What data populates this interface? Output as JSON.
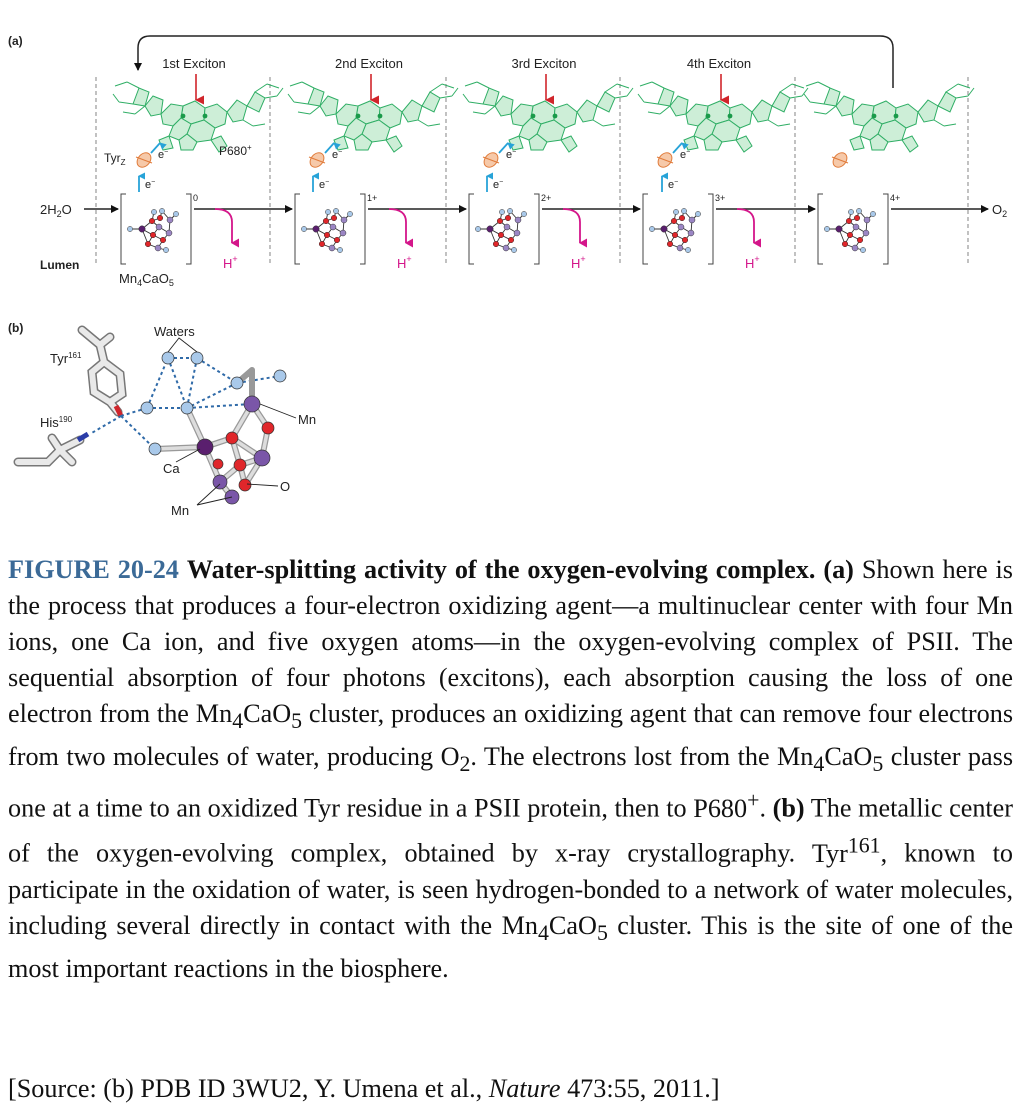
{
  "panel_a": {
    "label": "(a)",
    "excitons": [
      "1st Exciton",
      "2nd Exciton",
      "3rd Exciton",
      "4th Exciton"
    ],
    "tyr_label": "Tyr",
    "tyr_sub": "Z",
    "p680_label": "P680",
    "p680_sup": "+",
    "electron": "e",
    "electron_sup": "−",
    "water": "2H",
    "water_sub": "2",
    "water_end": "O",
    "oxygen": "O",
    "oxygen_sub": "2",
    "lumen": "Lumen",
    "cluster": [
      "Mn",
      "4",
      "CaO",
      "5"
    ],
    "states": [
      "0",
      "1+",
      "2+",
      "3+",
      "4+"
    ],
    "proton": "H",
    "proton_sup": "+"
  },
  "panel_b": {
    "label": "(b)",
    "waters": "Waters",
    "tyr": "Tyr",
    "tyr_sup": "161",
    "his": "His",
    "his_sup": "190",
    "mn": "Mn",
    "ca": "Ca",
    "o": "O"
  },
  "caption": {
    "fig_num": "FIGURE 20-24",
    "fig_title": "Water-splitting activity of the oxygen-evolving complex.",
    "a_marker": "(a)",
    "t1": "Shown here is the process that produces a four-electron oxidizing agent—a multinuclear center with four Mn ions, one Ca ion, and five oxygen atoms—in the oxygen-evolving complex of PSII. The sequential absorption of four photons (excitons), each absorption causing the loss of one electron from the",
    "mn": "Mn",
    "n4": "4",
    "cao": "CaO",
    "n5": "5",
    "t2": "cluster, produces an oxidizing agent that can remove four electrons from two molecules of water, producing",
    "o2_o": "O",
    "o2_2": "2",
    "t3": ". The electrons lost from the",
    "t4": "cluster pass one at a time to an oxidized Tyr residue in a PSII protein, then to",
    "p680": "P680",
    "p680_sup": "+",
    "t5": ".",
    "b_marker": "(b)",
    "t6": "The metallic center of the oxygen-evolving complex, obtained by x-ray crystallography.",
    "tyr": "Tyr",
    "tyr_sup": "161",
    "t7": ", known to participate in the oxidation of water, is seen hydrogen-bonded to a network of water molecules, including several directly in contact with the",
    "t8": "cluster. This is the site of one of the most important reactions in the biosphere."
  },
  "source": {
    "pre": "[Source: (b) PDB ID 3WU2, Y. Umena et al.,",
    "journal": "Nature",
    "post": "473:55, 2011.]"
  },
  "colors": {
    "chlorophyll": "#cdeed7",
    "chlorophyll_stroke": "#2fae65",
    "exciton_arrow": "#d0252b",
    "electron_arrow": "#27a3d8",
    "proton_arrow": "#d4168a",
    "oxygen": "#e0262a",
    "manganese": "#7a56a8",
    "calcium": "#5a1f6e",
    "water": "#a9c9ea",
    "hbond": "#2f6aa8",
    "caption_blue": "#3b6a97"
  }
}
